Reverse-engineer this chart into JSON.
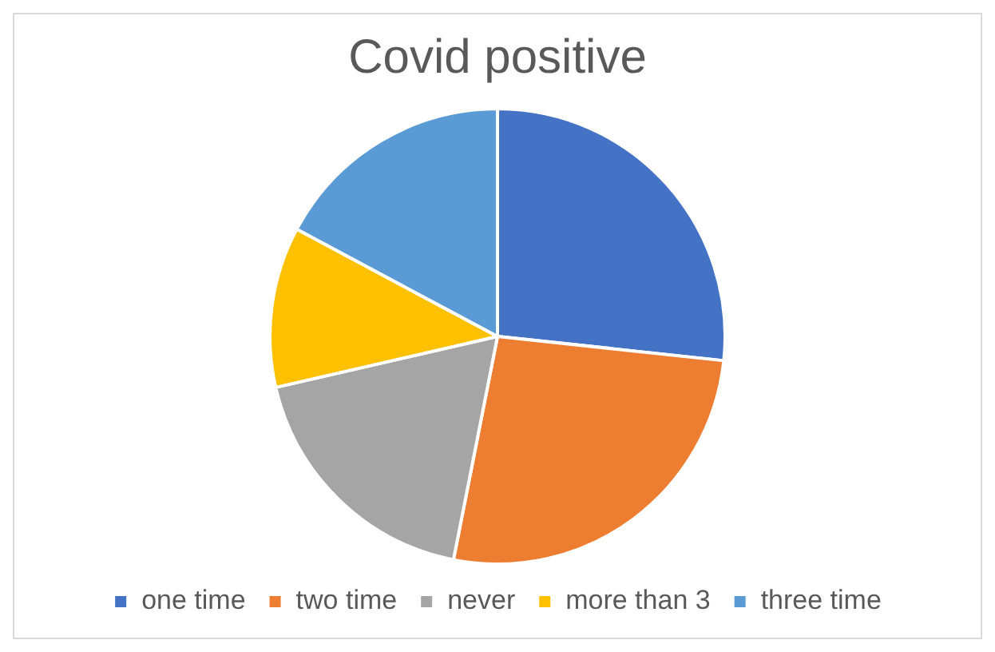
{
  "chart_data": {
    "type": "pie",
    "title": "Covid positive",
    "categories": [
      "one time",
      "two time",
      "never",
      "more than 3",
      "three time"
    ],
    "values": [
      26.7,
      26.4,
      18.3,
      11.4,
      17.2
    ],
    "colors": [
      "#4472c4",
      "#ed7d31",
      "#a5a5a5",
      "#ffc000",
      "#5b9bd5"
    ],
    "legend": "bottom"
  }
}
